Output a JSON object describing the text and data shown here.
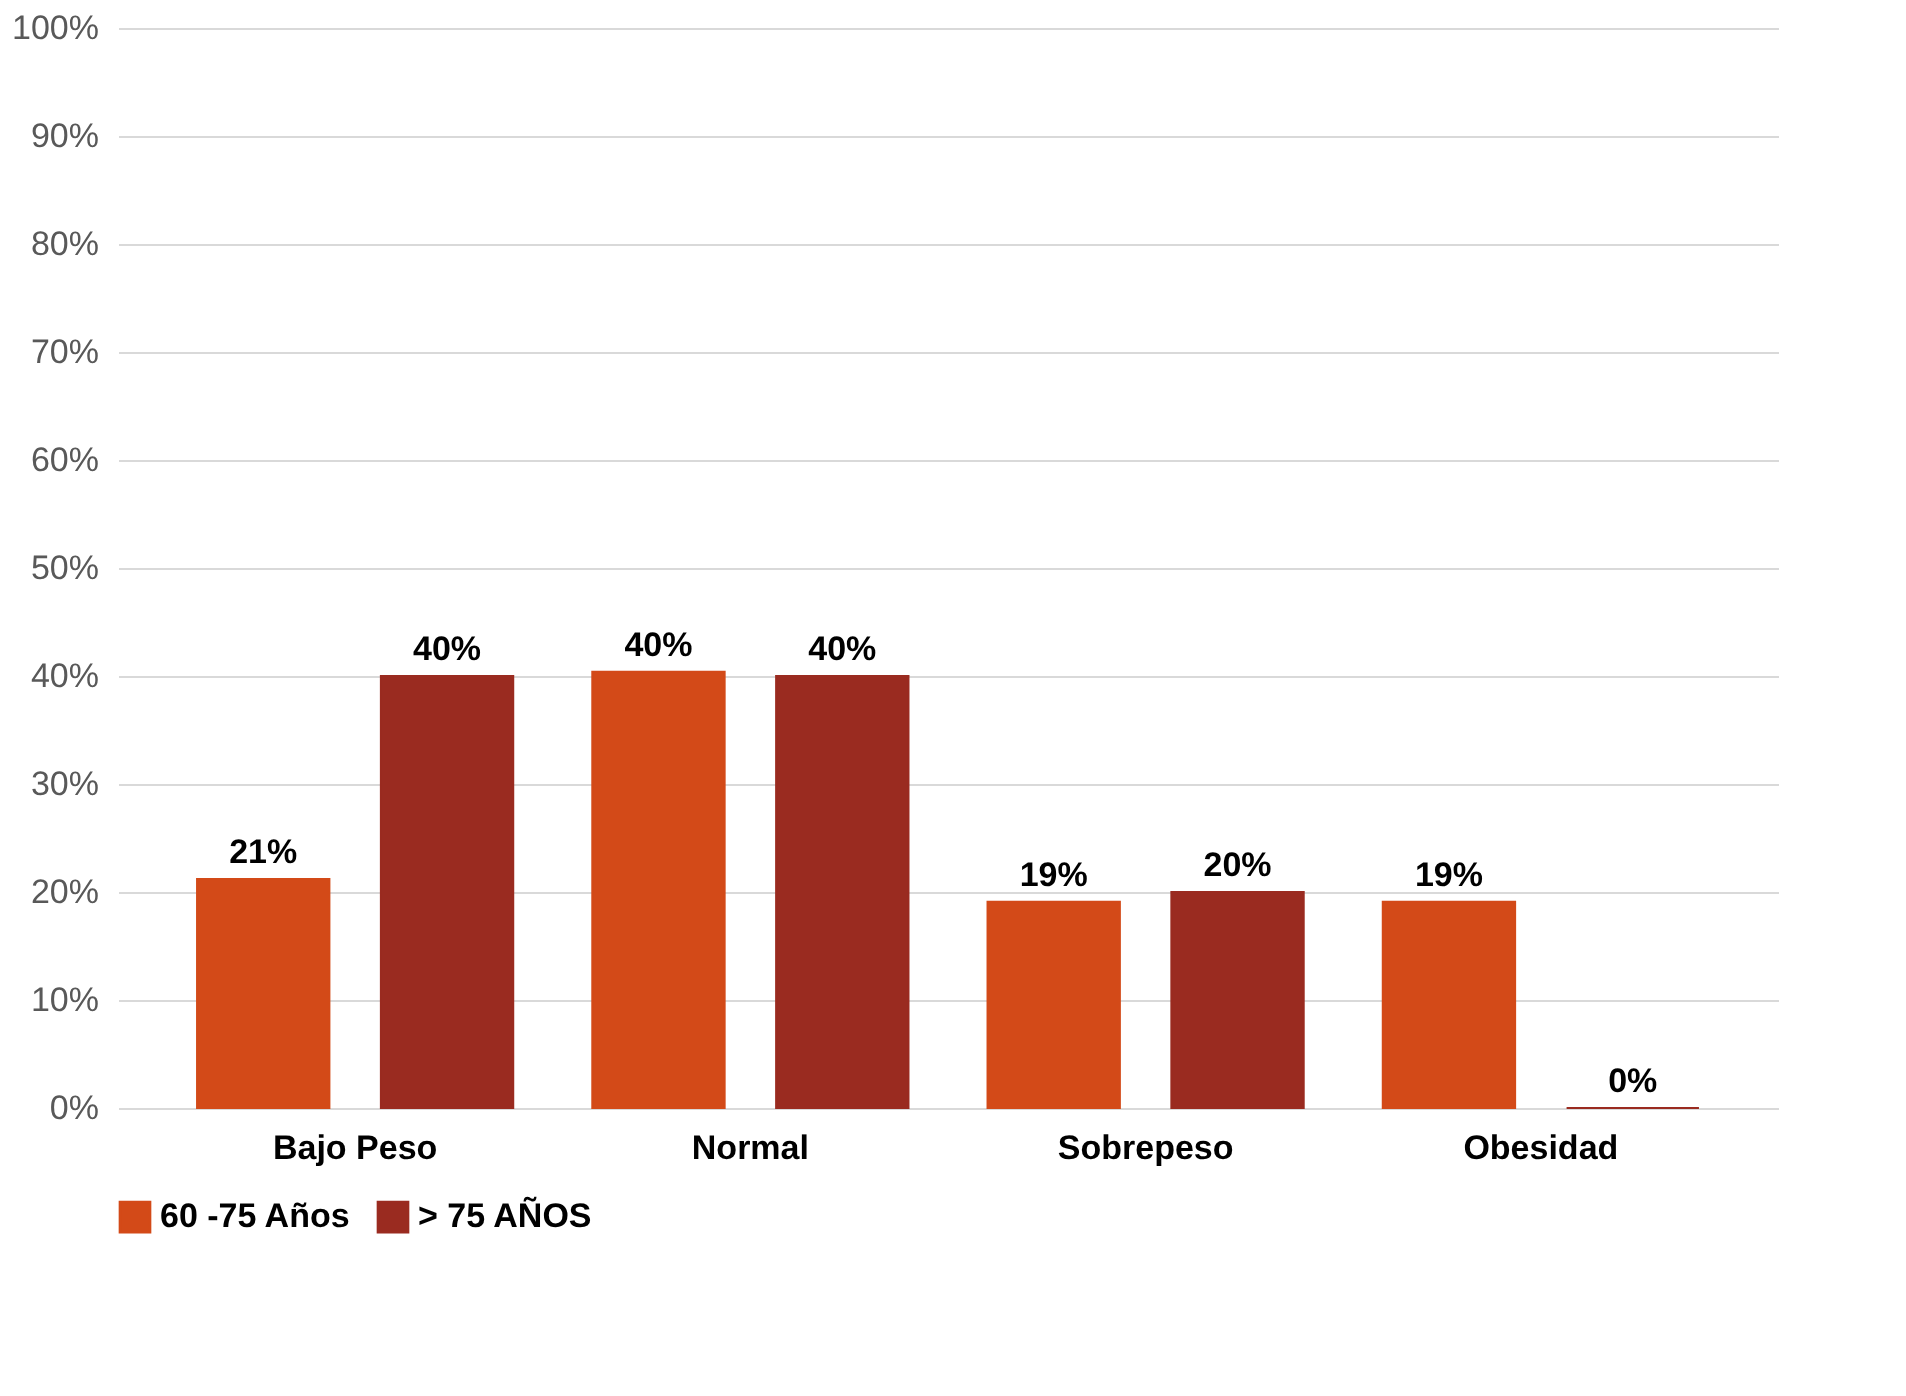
{
  "chart_data": {
    "type": "bar",
    "categories": [
      "Bajo Peso",
      "Normal",
      "Sobrepeso",
      "Obesidad"
    ],
    "series": [
      {
        "name": "60 -75 Años",
        "color": "#d34a18",
        "values": [
          21.2,
          40.4,
          19.1,
          19.1
        ],
        "value_labels": [
          "21%",
          "40%",
          "19%",
          "19%"
        ]
      },
      {
        "name": "> 75 AÑOS",
        "color": "#9a2b20",
        "values": [
          40,
          40,
          20,
          0
        ],
        "value_labels": [
          "40%",
          "40%",
          "20%",
          "0%"
        ]
      }
    ],
    "ylim": [
      0,
      100
    ],
    "yticks": [
      {
        "value": 0,
        "label": "0%"
      },
      {
        "value": 10,
        "label": "10%"
      },
      {
        "value": 20,
        "label": "20%"
      },
      {
        "value": 30,
        "label": "30%"
      },
      {
        "value": 40,
        "label": "40%"
      },
      {
        "value": 50,
        "label": "50%"
      },
      {
        "value": 60,
        "label": "60%"
      },
      {
        "value": 70,
        "label": "70%"
      },
      {
        "value": 80,
        "label": "80%"
      },
      {
        "value": 90,
        "label": "90%"
      },
      {
        "value": 100,
        "label": "100%"
      }
    ],
    "grid": "y",
    "legend": "bottom"
  }
}
